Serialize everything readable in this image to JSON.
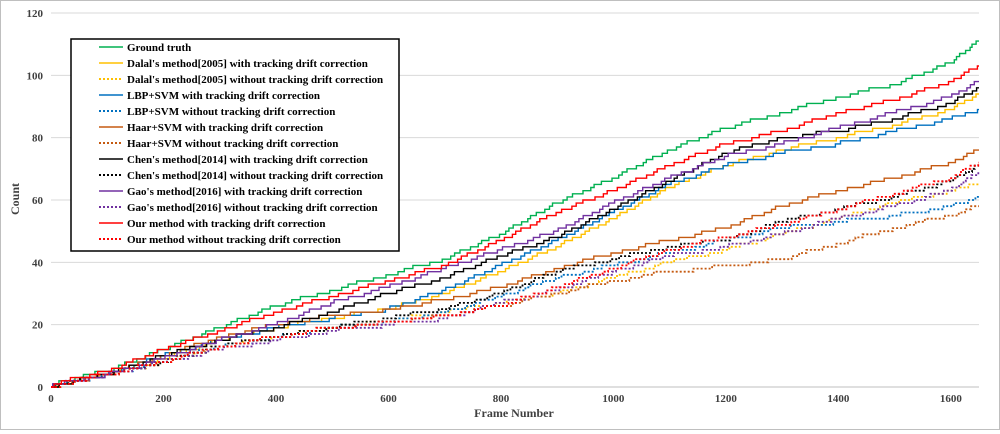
{
  "chart_data": {
    "type": "line",
    "title": "",
    "xlabel": "Frame Number",
    "ylabel": "Count",
    "xlim": [
      0,
      1650
    ],
    "ylim": [
      0,
      120
    ],
    "xticks": [
      0,
      200,
      400,
      600,
      800,
      1000,
      1200,
      1400,
      1600
    ],
    "yticks": [
      0,
      20,
      40,
      60,
      80,
      100,
      120
    ],
    "grid": "horizontal",
    "legend_position": "top-left",
    "series": [
      {
        "name": "Ground truth",
        "color": "#00b050",
        "dash": "solid",
        "x": [
          0,
          20,
          100,
          200,
          300,
          400,
          500,
          600,
          700,
          800,
          900,
          1000,
          1100,
          1200,
          1300,
          1400,
          1500,
          1600,
          1650
        ],
        "y": [
          0,
          2,
          5,
          12,
          19,
          26,
          31,
          36,
          41,
          49,
          59,
          67,
          76,
          83,
          88,
          93,
          97,
          104,
          111
        ]
      },
      {
        "name": "Dalal's method[2005] with tracking drift correction",
        "color": "#ffc000",
        "dash": "solid",
        "x": [
          0,
          20,
          100,
          200,
          300,
          400,
          500,
          600,
          700,
          800,
          900,
          1000,
          1100,
          1200,
          1300,
          1400,
          1500,
          1600,
          1650
        ],
        "y": [
          0,
          1,
          4,
          9,
          15,
          19,
          22,
          25,
          30,
          37,
          45,
          54,
          64,
          71,
          76,
          80,
          84,
          89,
          94
        ]
      },
      {
        "name": "Dalal's method[2005] without tracking drift correction",
        "color": "#ffc000",
        "dash": "dotted",
        "x": [
          0,
          20,
          100,
          200,
          300,
          400,
          500,
          600,
          700,
          800,
          900,
          1000,
          1100,
          1200,
          1300,
          1400,
          1500,
          1600,
          1650
        ],
        "y": [
          0,
          1,
          4,
          8,
          13,
          16,
          19,
          21,
          24,
          27,
          30,
          35,
          40,
          44,
          49,
          54,
          59,
          63,
          65
        ]
      },
      {
        "name": "LBP+SVM with tracking drift correction",
        "color": "#0070c0",
        "dash": "solid",
        "x": [
          0,
          20,
          100,
          200,
          300,
          400,
          500,
          600,
          700,
          800,
          900,
          1000,
          1100,
          1200,
          1300,
          1400,
          1500,
          1600,
          1650
        ],
        "y": [
          0,
          1,
          4,
          10,
          15,
          19,
          22,
          25,
          31,
          39,
          47,
          56,
          65,
          71,
          75,
          78,
          82,
          86,
          89
        ]
      },
      {
        "name": "LBP+SVM without tracking drift correction",
        "color": "#0070c0",
        "dash": "dotted",
        "x": [
          0,
          20,
          100,
          200,
          300,
          400,
          500,
          600,
          700,
          800,
          900,
          1000,
          1100,
          1200,
          1300,
          1400,
          1500,
          1600,
          1650
        ],
        "y": [
          0,
          1,
          4,
          8,
          13,
          16,
          19,
          21,
          24,
          29,
          35,
          39,
          43,
          47,
          51,
          53,
          55,
          58,
          61
        ]
      },
      {
        "name": "Haar+SVM with tracking drift correction",
        "color": "#c55a11",
        "dash": "solid",
        "x": [
          0,
          20,
          100,
          200,
          300,
          400,
          500,
          600,
          700,
          800,
          900,
          1000,
          1100,
          1200,
          1300,
          1400,
          1500,
          1600,
          1650
        ],
        "y": [
          0,
          1,
          4,
          10,
          16,
          20,
          23,
          25,
          28,
          32,
          38,
          43,
          47,
          51,
          58,
          63,
          67,
          72,
          76
        ]
      },
      {
        "name": "Haar+SVM without tracking drift correction",
        "color": "#c55a11",
        "dash": "dotted",
        "x": [
          0,
          20,
          100,
          200,
          300,
          400,
          500,
          600,
          700,
          800,
          900,
          1000,
          1100,
          1200,
          1300,
          1400,
          1500,
          1600,
          1650
        ],
        "y": [
          0,
          1,
          4,
          8,
          13,
          16,
          19,
          21,
          23,
          26,
          30,
          34,
          37,
          39,
          41,
          46,
          51,
          55,
          58
        ]
      },
      {
        "name": "Chen's method[2014] with tracking drift correction",
        "color": "#000000",
        "dash": "solid",
        "x": [
          0,
          20,
          100,
          200,
          300,
          400,
          500,
          600,
          700,
          800,
          900,
          1000,
          1100,
          1200,
          1300,
          1400,
          1500,
          1600,
          1650
        ],
        "y": [
          0,
          1,
          4,
          10,
          15,
          19,
          24,
          30,
          35,
          42,
          48,
          57,
          66,
          75,
          80,
          82,
          86,
          91,
          96
        ]
      },
      {
        "name": "Chen's method[2014] without tracking drift correction",
        "color": "#000000",
        "dash": "dotted",
        "x": [
          0,
          20,
          100,
          200,
          300,
          400,
          500,
          600,
          700,
          800,
          900,
          1000,
          1100,
          1200,
          1300,
          1400,
          1500,
          1600,
          1650
        ],
        "y": [
          0,
          1,
          4,
          8,
          13,
          16,
          19,
          22,
          25,
          30,
          37,
          41,
          45,
          47,
          53,
          57,
          61,
          66,
          71
        ]
      },
      {
        "name": "Gao's method[2016] with tracking drift correction",
        "color": "#7030a0",
        "dash": "solid",
        "x": [
          0,
          20,
          100,
          200,
          300,
          400,
          500,
          600,
          700,
          800,
          900,
          1000,
          1100,
          1200,
          1300,
          1400,
          1500,
          1600,
          1650
        ],
        "y": [
          0,
          1,
          4,
          9,
          15,
          20,
          27,
          32,
          38,
          44,
          50,
          59,
          67,
          74,
          78,
          83,
          88,
          93,
          98
        ]
      },
      {
        "name": "Gao's method[2016] without tracking drift correction",
        "color": "#7030a0",
        "dash": "dotted",
        "x": [
          0,
          20,
          100,
          200,
          300,
          400,
          500,
          600,
          700,
          800,
          900,
          1000,
          1100,
          1200,
          1300,
          1400,
          1500,
          1600,
          1650
        ],
        "y": [
          0,
          1,
          4,
          8,
          12,
          15,
          18,
          20,
          22,
          27,
          31,
          37,
          42,
          45,
          49,
          54,
          58,
          63,
          69
        ]
      },
      {
        "name": "Our method with tracking drift correction",
        "color": "#ff0000",
        "dash": "solid",
        "x": [
          0,
          20,
          100,
          200,
          300,
          400,
          500,
          600,
          700,
          800,
          900,
          1000,
          1100,
          1200,
          1300,
          1400,
          1500,
          1600,
          1650
        ],
        "y": [
          0,
          2,
          5,
          12,
          18,
          24,
          29,
          34,
          39,
          47,
          56,
          63,
          71,
          78,
          82,
          88,
          92,
          98,
          103
        ]
      },
      {
        "name": "Our method without tracking drift correction",
        "color": "#ff0000",
        "dash": "dotted",
        "x": [
          0,
          20,
          100,
          200,
          300,
          400,
          500,
          600,
          700,
          800,
          900,
          1000,
          1100,
          1200,
          1300,
          1400,
          1500,
          1600,
          1650
        ],
        "y": [
          0,
          1,
          4,
          8,
          13,
          16,
          19,
          21,
          23,
          26,
          32,
          38,
          44,
          48,
          52,
          57,
          62,
          67,
          72
        ]
      }
    ]
  }
}
